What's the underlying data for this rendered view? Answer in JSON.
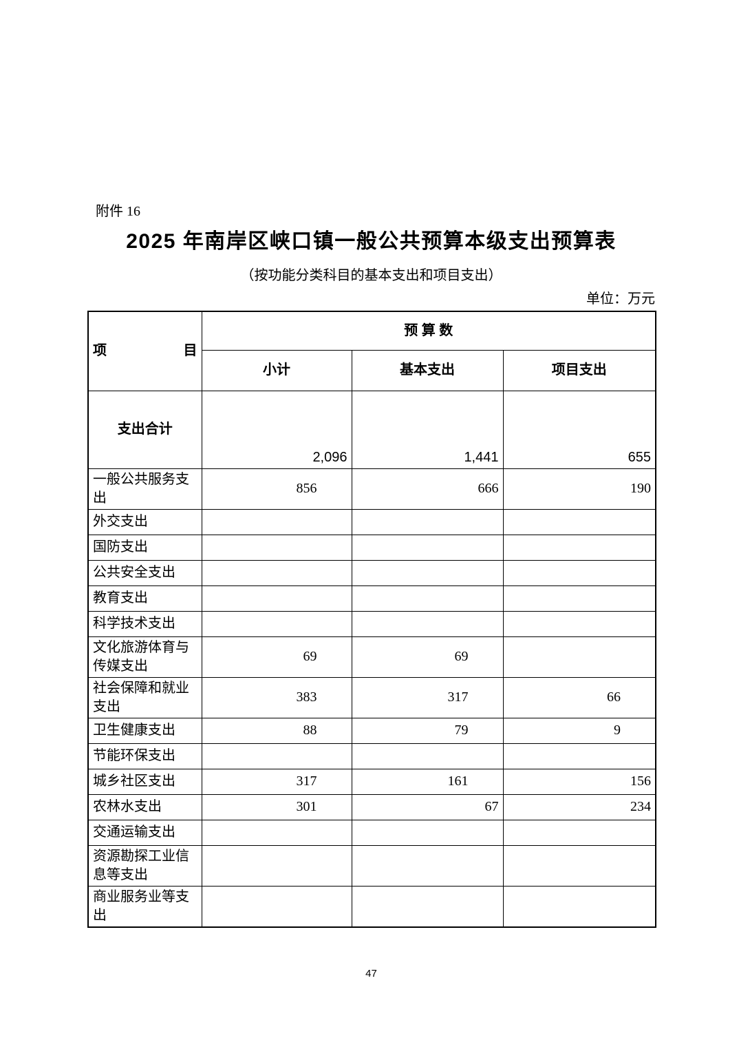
{
  "page": {
    "attachment_label": "附件 16",
    "title": "2025 年南岸区峡口镇一般公共预算本级支出预算表",
    "subtitle": "（按功能分类科目的基本支出和项目支出）",
    "unit_note": "单位：万元",
    "page_number": "47"
  },
  "table": {
    "header": {
      "item_label": "项目",
      "budget_group_label": "预 算 数",
      "columns": [
        "小计",
        "基本支出",
        "项目支出"
      ]
    },
    "total_row": {
      "label": "支出合计",
      "values": [
        "2,096",
        "1,441",
        "655"
      ]
    },
    "rows": [
      {
        "label": "一般公共服务支出",
        "cells": [
          {
            "v": "856",
            "a": "ri"
          },
          {
            "v": "666",
            "a": "r"
          },
          {
            "v": "190",
            "a": "r"
          }
        ]
      },
      {
        "label": "外交支出",
        "cells": [
          {
            "v": "",
            "a": ""
          },
          {
            "v": "",
            "a": ""
          },
          {
            "v": "",
            "a": ""
          }
        ]
      },
      {
        "label": "国防支出",
        "cells": [
          {
            "v": "",
            "a": ""
          },
          {
            "v": "",
            "a": ""
          },
          {
            "v": "",
            "a": ""
          }
        ]
      },
      {
        "label": "公共安全支出",
        "cells": [
          {
            "v": "",
            "a": ""
          },
          {
            "v": "",
            "a": ""
          },
          {
            "v": "",
            "a": ""
          }
        ]
      },
      {
        "label": "教育支出",
        "cells": [
          {
            "v": "",
            "a": ""
          },
          {
            "v": "",
            "a": ""
          },
          {
            "v": "",
            "a": ""
          }
        ]
      },
      {
        "label": "科学技术支出",
        "cells": [
          {
            "v": "",
            "a": ""
          },
          {
            "v": "",
            "a": ""
          },
          {
            "v": "",
            "a": ""
          }
        ]
      },
      {
        "label": "文化旅游体育与传媒支出",
        "cells": [
          {
            "v": "69",
            "a": "ri"
          },
          {
            "v": "69",
            "a": "ri"
          },
          {
            "v": "",
            "a": ""
          }
        ]
      },
      {
        "label": "社会保障和就业支出",
        "cells": [
          {
            "v": "383",
            "a": "ri"
          },
          {
            "v": "317",
            "a": "ri"
          },
          {
            "v": "66",
            "a": "ri"
          }
        ]
      },
      {
        "label": "卫生健康支出",
        "cells": [
          {
            "v": "88",
            "a": "ri"
          },
          {
            "v": "79",
            "a": "ri"
          },
          {
            "v": "9",
            "a": "ri"
          }
        ]
      },
      {
        "label": "节能环保支出",
        "cells": [
          {
            "v": "",
            "a": ""
          },
          {
            "v": "",
            "a": ""
          },
          {
            "v": "",
            "a": ""
          }
        ]
      },
      {
        "label": "城乡社区支出",
        "cells": [
          {
            "v": "317",
            "a": "ri"
          },
          {
            "v": "161",
            "a": "ri"
          },
          {
            "v": "156",
            "a": "r"
          }
        ]
      },
      {
        "label": "农林水支出",
        "cells": [
          {
            "v": "301",
            "a": "ri"
          },
          {
            "v": "67",
            "a": "r"
          },
          {
            "v": "234",
            "a": "r"
          }
        ]
      },
      {
        "label": "交通运输支出",
        "cells": [
          {
            "v": "",
            "a": ""
          },
          {
            "v": "",
            "a": ""
          },
          {
            "v": "",
            "a": ""
          }
        ]
      },
      {
        "label": "资源勘探工业信息等支出",
        "cells": [
          {
            "v": "",
            "a": ""
          },
          {
            "v": "",
            "a": ""
          },
          {
            "v": "",
            "a": ""
          }
        ]
      },
      {
        "label": "商业服务业等支出",
        "cells": [
          {
            "v": "",
            "a": ""
          },
          {
            "v": "",
            "a": ""
          },
          {
            "v": "",
            "a": ""
          }
        ]
      }
    ]
  }
}
